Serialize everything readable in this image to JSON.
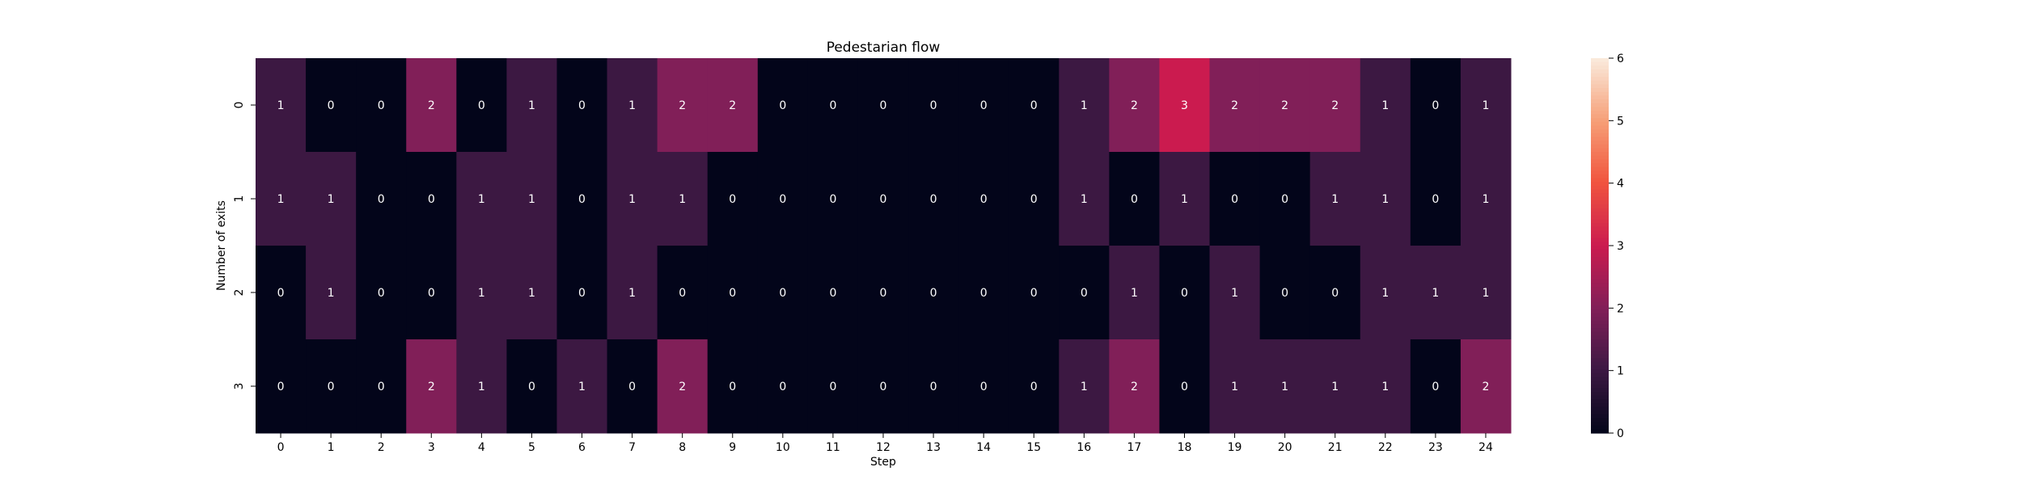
{
  "chart_data": {
    "type": "heatmap",
    "title": "Pedestarian flow",
    "xlabel": "Step",
    "ylabel": "Number of exits",
    "x_ticks": [
      "0",
      "1",
      "2",
      "3",
      "4",
      "5",
      "6",
      "7",
      "8",
      "9",
      "10",
      "11",
      "12",
      "13",
      "14",
      "15",
      "16",
      "17",
      "18",
      "19",
      "20",
      "21",
      "22",
      "23",
      "24"
    ],
    "y_ticks": [
      "0",
      "1",
      "2",
      "3"
    ],
    "values": [
      [
        1,
        0,
        0,
        2,
        0,
        1,
        0,
        1,
        2,
        2,
        0,
        0,
        0,
        0,
        0,
        0,
        1,
        2,
        3,
        2,
        2,
        2,
        1,
        0,
        1
      ],
      [
        1,
        1,
        0,
        0,
        1,
        1,
        0,
        1,
        1,
        0,
        0,
        0,
        0,
        0,
        0,
        0,
        1,
        0,
        1,
        0,
        0,
        1,
        1,
        0,
        1
      ],
      [
        0,
        1,
        0,
        0,
        1,
        1,
        0,
        1,
        0,
        0,
        0,
        0,
        0,
        0,
        0,
        0,
        0,
        1,
        0,
        1,
        0,
        0,
        1,
        1,
        1
      ],
      [
        0,
        0,
        0,
        2,
        1,
        0,
        1,
        0,
        2,
        0,
        0,
        0,
        0,
        0,
        0,
        0,
        1,
        2,
        0,
        1,
        1,
        1,
        1,
        0,
        2
      ]
    ],
    "colorbar": {
      "range": [
        0,
        6
      ],
      "ticks": [
        "0",
        "1",
        "2",
        "3",
        "4",
        "5",
        "6"
      ],
      "colormap": "rocket"
    },
    "annotations": true,
    "grid": false,
    "legend": "colorbar-right"
  }
}
